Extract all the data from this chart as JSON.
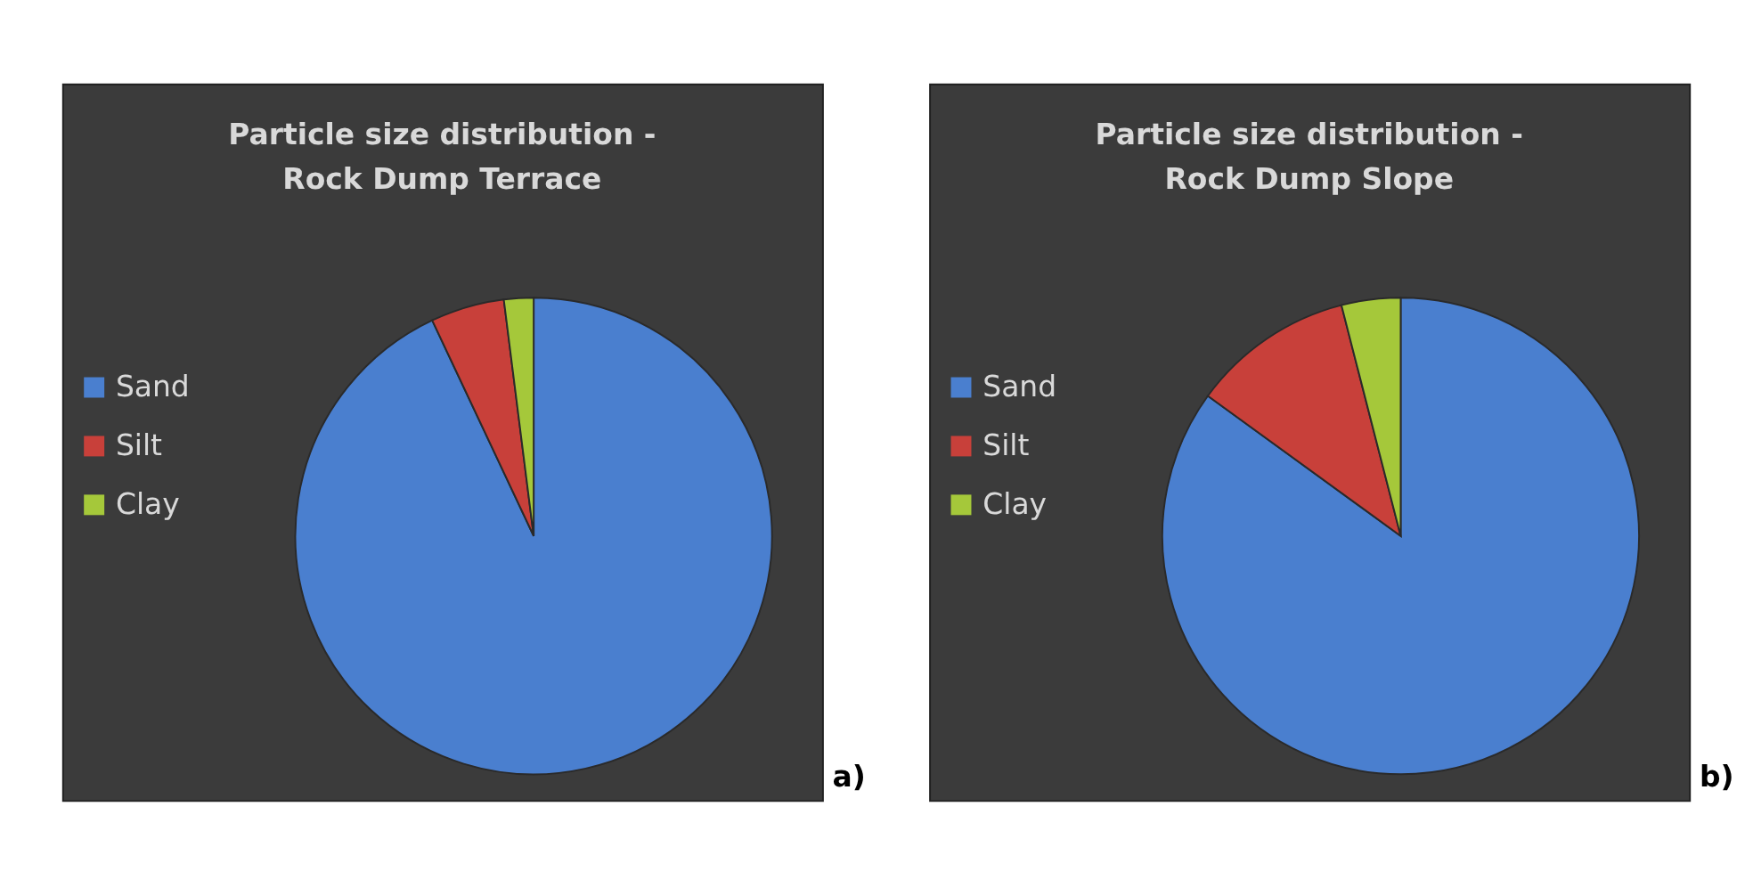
{
  "chart_data": [
    {
      "type": "pie",
      "title": "Particle size distribution -\nRock Dump Terrace",
      "categories": [
        "Sand",
        "Silt",
        "Clay"
      ],
      "values": [
        93,
        5,
        2
      ],
      "colors": [
        "#4a7fcf",
        "#c8403a",
        "#a5c83a"
      ],
      "legend": "left",
      "annotations": [
        "a)"
      ]
    },
    {
      "type": "pie",
      "title": "Particle size distribution -\nRock Dump Slope",
      "categories": [
        "Sand",
        "Silt",
        "Clay"
      ],
      "values": [
        85,
        11,
        4
      ],
      "colors": [
        "#4a7fcf",
        "#c8403a",
        "#a5c83a"
      ],
      "legend": "left",
      "annotations": [
        "b)"
      ]
    }
  ]
}
